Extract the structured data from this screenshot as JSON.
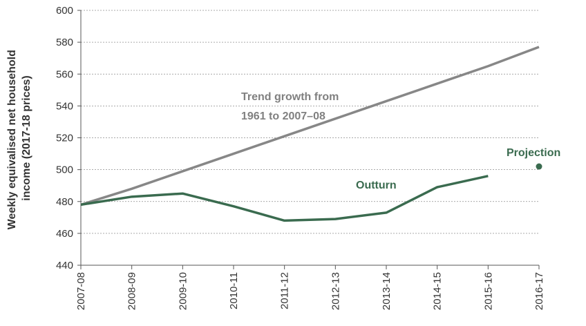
{
  "chart_data": {
    "type": "line",
    "categories": [
      "2007-08",
      "2008-09",
      "2009-10",
      "2010-11",
      "2011-12",
      "2012-13",
      "2013-14",
      "2014-15",
      "2015-16",
      "2016-17"
    ],
    "ylabel_lines": [
      "Weekly equivalised net household",
      "income (2017-18 prices)"
    ],
    "ylim": [
      440,
      600
    ],
    "yticks": [
      440,
      460,
      480,
      500,
      520,
      540,
      560,
      580,
      600
    ],
    "grid": true,
    "series": [
      {
        "key": "trend",
        "values": [
          478,
          488,
          499,
          510,
          521,
          532,
          543,
          554,
          565,
          577
        ],
        "color": "#878787",
        "label_lines": [
          "Trend growth from",
          "1961 to 2007–08"
        ]
      },
      {
        "key": "outturn",
        "name": "Outturn",
        "values": [
          478,
          483,
          485,
          477,
          468,
          469,
          473,
          489,
          496,
          null
        ],
        "color": "#3a6b4f"
      },
      {
        "key": "projection",
        "name": "Projection",
        "type": "point",
        "category": "2016-17",
        "value": 502,
        "color": "#3a6b4f"
      }
    ]
  }
}
